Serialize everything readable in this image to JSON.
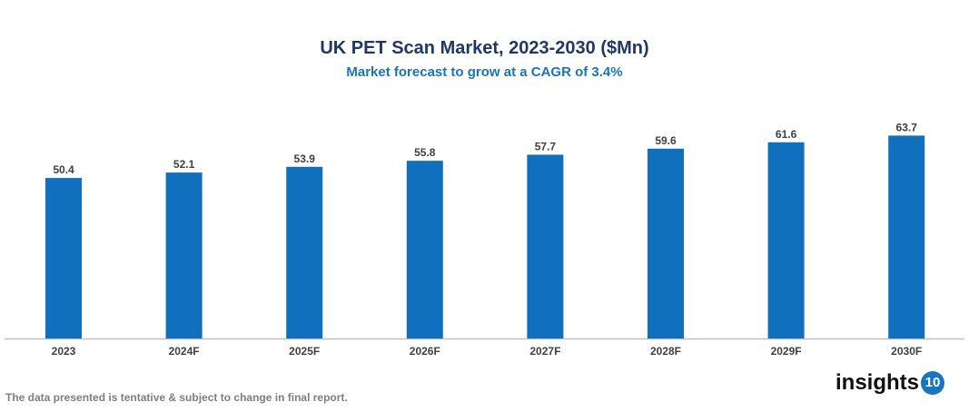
{
  "chart_data": {
    "type": "bar",
    "title": "UK PET Scan Market, 2023-2030 ($Mn)",
    "subtitle": "Market forecast to grow at a CAGR of 3.4%",
    "categories": [
      "2023",
      "2024F",
      "2025F",
      "2026F",
      "2027F",
      "2028F",
      "2029F",
      "2030F"
    ],
    "values": [
      50.4,
      52.1,
      53.9,
      55.8,
      57.7,
      59.6,
      61.6,
      63.7
    ],
    "ylim": [
      0,
      65
    ],
    "grid": false,
    "bar_color": "#1170bd",
    "data_labels": true
  },
  "footer": {
    "note": "The data presented is tentative & subject to change in final report.",
    "logo_text": "insights",
    "logo_number": "10"
  }
}
